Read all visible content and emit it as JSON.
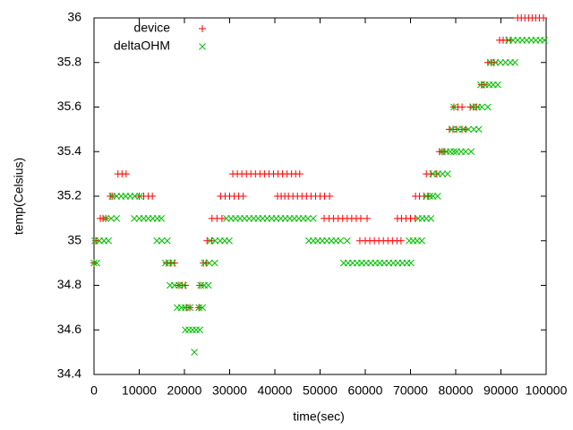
{
  "chart_data": {
    "type": "scatter",
    "xlabel": "time(sec)",
    "ylabel": "temp(Celsius)",
    "xlim": [
      0,
      100000
    ],
    "xticks": [
      0,
      10000,
      20000,
      30000,
      40000,
      50000,
      60000,
      70000,
      80000,
      90000,
      100000
    ],
    "ylim": [
      34.4,
      36
    ],
    "yticks": [
      34.4,
      34.6,
      34.8,
      35,
      35.2,
      35.4,
      35.6,
      35.8,
      36
    ],
    "legend": "top left",
    "series": [
      {
        "name": "device",
        "color": "#ff0000",
        "marker": "plus",
        "x": [
          0,
          400,
          1400,
          2000,
          2600,
          3600,
          4000,
          5300,
          6200,
          7100,
          10000,
          11000,
          12000,
          12900,
          16000,
          16900,
          17800,
          18800,
          19500,
          20200,
          20400,
          21200,
          23200,
          23400,
          24200,
          24800,
          25000,
          26000,
          26100,
          27200,
          28300,
          28000,
          29000,
          30000,
          31000,
          32000,
          33000,
          30700,
          31700,
          32700,
          33700,
          34700,
          35700,
          36700,
          37700,
          38700,
          39700,
          40700,
          41700,
          42700,
          43700,
          44600,
          45500,
          40600,
          41400,
          42200,
          43000,
          44000,
          45000,
          46000,
          47000,
          48000,
          49000,
          50000,
          51000,
          52100,
          50900,
          52000,
          53000,
          54000,
          55000,
          56000,
          57000,
          58000,
          59000,
          60400,
          58800,
          60000,
          61000,
          62000,
          63000,
          64000,
          65000,
          66000,
          67000,
          67900,
          67100,
          68000,
          69000,
          70000,
          71000,
          71100,
          72000,
          73000,
          73900,
          73500,
          74500,
          75800,
          76400,
          77000,
          77600,
          78600,
          79400,
          80200,
          79600,
          80500,
          81400,
          81400,
          82200,
          83200,
          83900,
          84600,
          85700,
          86300,
          87100,
          87800,
          88500,
          89700,
          90500,
          91300,
          92100,
          93700,
          94500,
          95300,
          96100,
          96900,
          97700,
          98500,
          99400
        ],
        "values": [
          34.9,
          35,
          35.1,
          35.1,
          35.1,
          35.2,
          35.2,
          35.3,
          35.3,
          35.3,
          35.2,
          35.2,
          35.2,
          35.2,
          34.9,
          34.9,
          34.9,
          34.8,
          34.8,
          34.8,
          34.7,
          34.7,
          34.7,
          34.8,
          34.9,
          34.9,
          35,
          35,
          35.1,
          35.1,
          35.1,
          35.2,
          35.2,
          35.2,
          35.2,
          35.2,
          35.2,
          35.3,
          35.3,
          35.3,
          35.3,
          35.3,
          35.3,
          35.3,
          35.3,
          35.3,
          35.3,
          35.3,
          35.3,
          35.3,
          35.3,
          35.3,
          35.3,
          35.2,
          35.2,
          35.2,
          35.2,
          35.2,
          35.2,
          35.2,
          35.2,
          35.2,
          35.2,
          35.2,
          35.2,
          35.2,
          35.1,
          35.1,
          35.1,
          35.1,
          35.1,
          35.1,
          35.1,
          35.1,
          35.1,
          35.1,
          35,
          35,
          35,
          35,
          35,
          35,
          35,
          35,
          35,
          35,
          35.1,
          35.1,
          35.1,
          35.1,
          35.1,
          35.2,
          35.2,
          35.2,
          35.2,
          35.3,
          35.3,
          35.3,
          35.4,
          35.4,
          35.4,
          35.5,
          35.5,
          35.5,
          35.6,
          35.6,
          35.6,
          35.5,
          35.5,
          35.6,
          35.6,
          35.6,
          35.7,
          35.7,
          35.8,
          35.8,
          35.8,
          35.9,
          35.9,
          35.9,
          35.9,
          36,
          36,
          36,
          36,
          36,
          36,
          36,
          36
        ]
      },
      {
        "name": "deltaOHM",
        "color": "#00c000",
        "marker": "cross",
        "x": [
          0,
          600,
          200,
          1200,
          2200,
          3200,
          2600,
          3800,
          5000,
          4000,
          5000,
          6000,
          7000,
          8000,
          9000,
          10100,
          8900,
          10000,
          11000,
          12000,
          13000,
          14000,
          14900,
          13900,
          15000,
          16200,
          15800,
          16600,
          17400,
          16800,
          17800,
          18800,
          19800,
          18400,
          19300,
          20200,
          21200,
          20200,
          21000,
          21800,
          22600,
          23400,
          22200,
          23200,
          24000,
          23600,
          24400,
          25300,
          24400,
          25500,
          26700,
          25700,
          26800,
          27900,
          28900,
          29900,
          29300,
          30300,
          31300,
          32300,
          33300,
          34300,
          35300,
          36300,
          37300,
          38300,
          39300,
          40300,
          41300,
          42300,
          43300,
          44300,
          45300,
          46300,
          47300,
          48500,
          47500,
          48500,
          49500,
          50500,
          51500,
          52500,
          53500,
          54500,
          56000,
          55200,
          56200,
          57200,
          58200,
          59200,
          60200,
          61200,
          62200,
          63200,
          64200,
          65200,
          66200,
          67200,
          68200,
          69200,
          70100,
          69700,
          70600,
          71500,
          72500,
          71700,
          72600,
          73500,
          74500,
          73500,
          74300,
          75000,
          76000,
          74900,
          76000,
          77100,
          78200,
          77000,
          77900,
          78800,
          79600,
          79200,
          80400,
          81600,
          82800,
          84000,
          85100,
          80200,
          81200,
          82200,
          83400,
          79600,
          83800,
          84800,
          85800,
          87100,
          85500,
          86500,
          87400,
          88300,
          89300,
          87700,
          88800,
          89900,
          91000,
          92100,
          93100,
          91700,
          92700,
          93700,
          94700,
          95700,
          96700,
          97700,
          98700,
          99600
        ],
        "values": [
          34.9,
          34.9,
          35,
          35,
          35,
          35,
          35.1,
          35.1,
          35.1,
          35.2,
          35.2,
          35.2,
          35.2,
          35.2,
          35.2,
          35.2,
          35.1,
          35.1,
          35.1,
          35.1,
          35.1,
          35.1,
          35.1,
          35,
          35,
          35,
          34.9,
          34.9,
          34.9,
          34.8,
          34.8,
          34.8,
          34.8,
          34.7,
          34.7,
          34.7,
          34.7,
          34.6,
          34.6,
          34.6,
          34.6,
          34.6,
          34.5,
          34.7,
          34.7,
          34.8,
          34.8,
          34.8,
          34.9,
          34.9,
          34.9,
          35,
          35,
          35,
          35,
          35,
          35.1,
          35.1,
          35.1,
          35.1,
          35.1,
          35.1,
          35.1,
          35.1,
          35.1,
          35.1,
          35.1,
          35.1,
          35.1,
          35.1,
          35.1,
          35.1,
          35.1,
          35.1,
          35.1,
          35.1,
          35,
          35,
          35,
          35,
          35,
          35,
          35,
          35,
          35,
          34.9,
          34.9,
          34.9,
          34.9,
          34.9,
          34.9,
          34.9,
          34.9,
          34.9,
          34.9,
          34.9,
          34.9,
          34.9,
          34.9,
          34.9,
          34.9,
          35,
          35,
          35,
          35,
          35.1,
          35.1,
          35.1,
          35.1,
          35.2,
          35.2,
          35.2,
          35.2,
          35.3,
          35.3,
          35.3,
          35.3,
          35.4,
          35.4,
          35.4,
          35.4,
          35.5,
          35.5,
          35.5,
          35.5,
          35.5,
          35.5,
          35.4,
          35.4,
          35.4,
          35.4,
          35.6,
          35.6,
          35.6,
          35.6,
          35.6,
          35.7,
          35.7,
          35.7,
          35.7,
          35.7,
          35.8,
          35.8,
          35.8,
          35.8,
          35.8,
          35.8,
          35.9,
          35.9,
          35.9,
          35.9,
          35.9,
          35.9,
          35.9,
          35.9,
          35.9
        ]
      }
    ]
  }
}
